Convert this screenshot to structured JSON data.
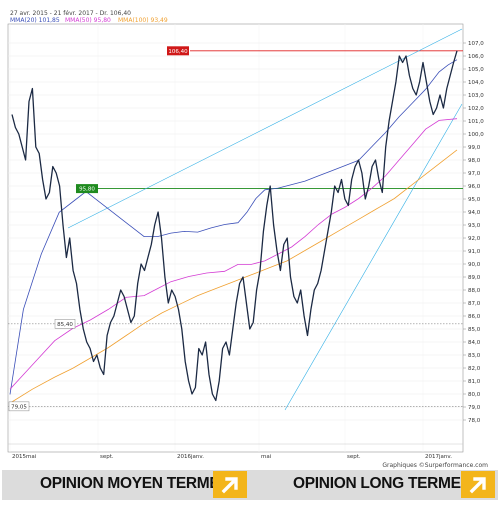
{
  "header": {
    "range_text": "27 avr. 2015 - 21 févr. 2017 - Dr. 106,40",
    "mm20_text": "MMA(20) 101,85",
    "mm50_text": "MMA(50) 95,80",
    "mm100_text": "MMA(100) 93,49"
  },
  "colors": {
    "price": "#1c2a44",
    "mm20": "#3b4fb8",
    "mm50": "#d43cd4",
    "mm100": "#f0a030",
    "trendline": "#33b0e6",
    "resistance": "#e02020",
    "support": "#1a8a1a",
    "badge_red": "#d01818",
    "badge_green": "#1e8a1e",
    "opinion_icon_bg": "#f3b51b"
  },
  "chart_data": {
    "type": "line",
    "y_axis": {
      "min": 78.0,
      "max": 107.0,
      "ticks": [
        "107,0",
        "106,0",
        "105,0",
        "104,0",
        "103,0",
        "102,0",
        "101,0",
        "100,0",
        "99,0",
        "98,0",
        "97,0",
        "96,0",
        "95,0",
        "94,0",
        "93,0",
        "92,0",
        "91,0",
        "90,0",
        "89,0",
        "88,0",
        "87,0",
        "86,0",
        "85,0",
        "84,0",
        "83,0",
        "82,0",
        "81,0",
        "80,0",
        "79,0",
        "78,0"
      ]
    },
    "x_axis": {
      "labels": [
        "2015mai",
        "sept.",
        "2016janv.",
        "mai",
        "sept.",
        "2017janv."
      ]
    },
    "levels": {
      "resistance": {
        "value": 106.4,
        "label": "106,40"
      },
      "support": {
        "value": 95.8,
        "label": "95,80"
      },
      "dotted_1": {
        "value": 85.4,
        "label": "85,40"
      },
      "dotted_2": {
        "value": 79.05,
        "label": "79,05"
      }
    },
    "credit": "Graphiques ©Surperformance.com",
    "series": [
      {
        "name": "MMA(20)",
        "key": "mm20",
        "points": [
          [
            0,
            0.055
          ],
          [
            0.03,
            0.3
          ],
          [
            0.07,
            0.46
          ],
          [
            0.11,
            0.58
          ],
          [
            0.15,
            0.62
          ],
          [
            0.17,
            0.64
          ],
          [
            0.2,
            0.61
          ],
          [
            0.23,
            0.58
          ],
          [
            0.27,
            0.54
          ],
          [
            0.3,
            0.51
          ],
          [
            0.33,
            0.51
          ],
          [
            0.36,
            0.52
          ],
          [
            0.39,
            0.525
          ],
          [
            0.42,
            0.523
          ],
          [
            0.45,
            0.535
          ],
          [
            0.48,
            0.545
          ],
          [
            0.51,
            0.55
          ],
          [
            0.53,
            0.58
          ],
          [
            0.55,
            0.62
          ],
          [
            0.57,
            0.645
          ],
          [
            0.6,
            0.65
          ],
          [
            0.63,
            0.66
          ],
          [
            0.66,
            0.67
          ],
          [
            0.69,
            0.685
          ],
          [
            0.72,
            0.7
          ],
          [
            0.75,
            0.715
          ],
          [
            0.78,
            0.73
          ],
          [
            0.81,
            0.77
          ],
          [
            0.84,
            0.81
          ],
          [
            0.87,
            0.855
          ],
          [
            0.9,
            0.895
          ],
          [
            0.93,
            0.935
          ],
          [
            0.96,
            0.985
          ],
          [
            0.98,
            1.005
          ],
          [
            1.0,
            1.02
          ]
        ]
      },
      {
        "name": "MMA(50)",
        "key": "mm50",
        "points": [
          [
            0,
            0.07
          ],
          [
            0.05,
            0.14
          ],
          [
            0.1,
            0.21
          ],
          [
            0.14,
            0.245
          ],
          [
            0.18,
            0.27
          ],
          [
            0.22,
            0.3
          ],
          [
            0.26,
            0.335
          ],
          [
            0.3,
            0.34
          ],
          [
            0.33,
            0.36
          ],
          [
            0.36,
            0.38
          ],
          [
            0.4,
            0.395
          ],
          [
            0.44,
            0.405
          ],
          [
            0.48,
            0.41
          ],
          [
            0.51,
            0.43
          ],
          [
            0.54,
            0.43
          ],
          [
            0.57,
            0.44
          ],
          [
            0.6,
            0.46
          ],
          [
            0.63,
            0.48
          ],
          [
            0.66,
            0.51
          ],
          [
            0.69,
            0.545
          ],
          [
            0.72,
            0.575
          ],
          [
            0.75,
            0.595
          ],
          [
            0.78,
            0.62
          ],
          [
            0.81,
            0.65
          ],
          [
            0.84,
            0.685
          ],
          [
            0.87,
            0.73
          ],
          [
            0.9,
            0.775
          ],
          [
            0.93,
            0.82
          ],
          [
            0.96,
            0.845
          ],
          [
            1.0,
            0.85
          ]
        ]
      },
      {
        "name": "MMA(100)",
        "key": "mm100",
        "points": [
          [
            0,
            0.03
          ],
          [
            0.05,
            0.07
          ],
          [
            0.1,
            0.105
          ],
          [
            0.14,
            0.13
          ],
          [
            0.18,
            0.16
          ],
          [
            0.22,
            0.19
          ],
          [
            0.26,
            0.225
          ],
          [
            0.3,
            0.26
          ],
          [
            0.34,
            0.29
          ],
          [
            0.38,
            0.315
          ],
          [
            0.42,
            0.34
          ],
          [
            0.46,
            0.36
          ],
          [
            0.5,
            0.38
          ],
          [
            0.54,
            0.4
          ],
          [
            0.58,
            0.42
          ],
          [
            0.62,
            0.44
          ],
          [
            0.66,
            0.47
          ],
          [
            0.7,
            0.5
          ],
          [
            0.74,
            0.53
          ],
          [
            0.78,
            0.56
          ],
          [
            0.82,
            0.59
          ],
          [
            0.86,
            0.62
          ],
          [
            0.9,
            0.66
          ],
          [
            0.94,
            0.7
          ],
          [
            0.97,
            0.73
          ],
          [
            1.0,
            0.76
          ]
        ]
      }
    ],
    "price_path": [
      [
        0,
        101.5
      ],
      [
        1,
        100.5
      ],
      [
        2,
        100.0
      ],
      [
        3,
        99.0
      ],
      [
        4,
        98.0
      ],
      [
        5,
        102.5
      ],
      [
        6,
        103.5
      ],
      [
        7,
        99.0
      ],
      [
        8,
        98.5
      ],
      [
        9,
        96.5
      ],
      [
        10,
        95.0
      ],
      [
        11,
        95.5
      ],
      [
        12,
        97.5
      ],
      [
        13,
        97.0
      ],
      [
        14,
        96.0
      ],
      [
        15,
        93.0
      ],
      [
        16,
        90.5
      ],
      [
        17,
        92.0
      ],
      [
        18,
        89.5
      ],
      [
        19,
        88.5
      ],
      [
        20,
        86.5
      ],
      [
        21,
        85.0
      ],
      [
        22,
        84.0
      ],
      [
        23,
        83.5
      ],
      [
        24,
        82.5
      ],
      [
        25,
        83.0
      ],
      [
        26,
        82.0
      ],
      [
        27,
        81.5
      ],
      [
        28,
        84.5
      ],
      [
        29,
        85.5
      ],
      [
        30,
        86.0
      ],
      [
        31,
        87.0
      ],
      [
        32,
        88.0
      ],
      [
        33,
        87.5
      ],
      [
        34,
        86.5
      ],
      [
        35,
        85.5
      ],
      [
        36,
        86.0
      ],
      [
        37,
        88.5
      ],
      [
        38,
        90.0
      ],
      [
        39,
        89.5
      ],
      [
        40,
        90.5
      ],
      [
        41,
        91.5
      ],
      [
        42,
        93.0
      ],
      [
        43,
        94.0
      ],
      [
        44,
        92.0
      ],
      [
        45,
        89.0
      ],
      [
        46,
        87.0
      ],
      [
        47,
        88.0
      ],
      [
        48,
        87.5
      ],
      [
        49,
        86.5
      ],
      [
        50,
        85.0
      ],
      [
        51,
        82.5
      ],
      [
        52,
        81.0
      ],
      [
        53,
        80.0
      ],
      [
        54,
        80.5
      ],
      [
        55,
        83.5
      ],
      [
        56,
        83.0
      ],
      [
        57,
        84.0
      ],
      [
        58,
        81.5
      ],
      [
        59,
        80.0
      ],
      [
        60,
        79.5
      ],
      [
        61,
        81.0
      ],
      [
        62,
        83.5
      ],
      [
        63,
        84.0
      ],
      [
        64,
        83.0
      ],
      [
        65,
        85.0
      ],
      [
        66,
        87.0
      ],
      [
        67,
        88.5
      ],
      [
        68,
        89.0
      ],
      [
        69,
        87.0
      ],
      [
        70,
        85.0
      ],
      [
        71,
        85.5
      ],
      [
        72,
        88.0
      ],
      [
        73,
        89.5
      ],
      [
        74,
        92.5
      ],
      [
        75,
        94.5
      ],
      [
        76,
        96.0
      ],
      [
        77,
        93.0
      ],
      [
        78,
        91.0
      ],
      [
        79,
        89.5
      ],
      [
        80,
        91.5
      ],
      [
        81,
        92.0
      ],
      [
        82,
        89.0
      ],
      [
        83,
        87.5
      ],
      [
        84,
        87.0
      ],
      [
        85,
        88.0
      ],
      [
        86,
        86.0
      ],
      [
        87,
        84.5
      ],
      [
        88,
        86.5
      ],
      [
        89,
        88.0
      ],
      [
        90,
        88.5
      ],
      [
        91,
        89.5
      ],
      [
        92,
        91.0
      ],
      [
        93,
        92.5
      ],
      [
        94,
        94.0
      ],
      [
        95,
        96.0
      ],
      [
        96,
        95.5
      ],
      [
        97,
        96.5
      ],
      [
        98,
        95.0
      ],
      [
        99,
        94.5
      ],
      [
        100,
        96.5
      ],
      [
        101,
        97.5
      ],
      [
        102,
        98.0
      ],
      [
        103,
        97.0
      ],
      [
        104,
        95.0
      ],
      [
        105,
        96.0
      ],
      [
        106,
        97.5
      ],
      [
        107,
        98.0
      ],
      [
        108,
        96.5
      ],
      [
        109,
        95.5
      ],
      [
        110,
        99.0
      ],
      [
        111,
        101.0
      ],
      [
        112,
        102.5
      ],
      [
        113,
        104.0
      ],
      [
        114,
        106.0
      ],
      [
        115,
        105.5
      ],
      [
        116,
        106.0
      ],
      [
        117,
        104.5
      ],
      [
        118,
        103.5
      ],
      [
        119,
        103.0
      ],
      [
        120,
        104.0
      ],
      [
        121,
        105.5
      ],
      [
        122,
        104.0
      ],
      [
        123,
        102.5
      ],
      [
        124,
        101.5
      ],
      [
        125,
        102.0
      ],
      [
        126,
        103.0
      ],
      [
        127,
        102.0
      ],
      [
        128,
        103.5
      ],
      [
        129,
        104.5
      ],
      [
        130,
        105.5
      ],
      [
        131,
        106.4
      ]
    ]
  },
  "opinions": {
    "moyen_terme": "OPINION MOYEN TERME",
    "long_terme": "OPINION LONG TERME"
  }
}
